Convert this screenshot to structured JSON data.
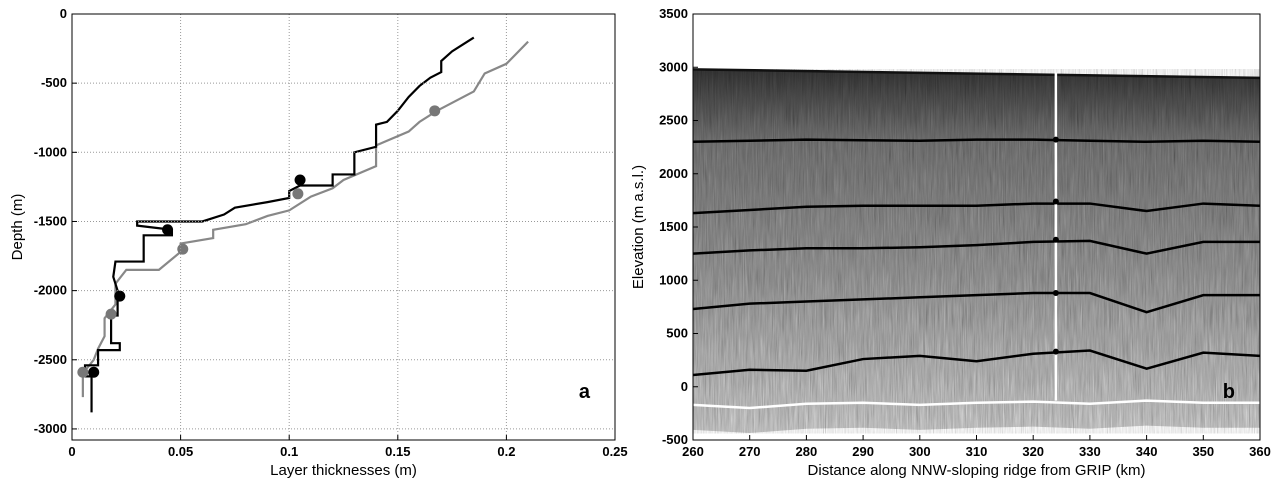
{
  "chart_data": [
    {
      "type": "line",
      "xlabel": "Layer thicknesses (m)",
      "ylabel": "Depth (m)",
      "xlim": [
        0,
        0.25
      ],
      "ylim": [
        -3080,
        0
      ],
      "xticks": [
        0,
        0.05,
        0.1,
        0.15,
        0.2,
        0.25
      ],
      "yticks": [
        0,
        -500,
        -1000,
        -1500,
        -2000,
        -2500,
        -3000
      ],
      "grid": true,
      "annotation": "a",
      "series": [
        {
          "color": "#888888",
          "style": "line",
          "x": [
            0.005,
            0.005,
            0.01,
            0.012,
            0.015,
            0.015,
            0.02,
            0.02,
            0.025,
            0.04,
            0.05,
            0.05,
            0.065,
            0.065,
            0.08,
            0.09,
            0.1,
            0.11,
            0.12,
            0.125,
            0.14,
            0.14,
            0.155,
            0.16,
            0.168,
            0.185,
            0.19,
            0.2,
            0.205,
            0.21
          ],
          "y": [
            -2770,
            -2600,
            -2500,
            -2420,
            -2330,
            -2200,
            -2100,
            -1950,
            -1850,
            -1850,
            -1720,
            -1660,
            -1620,
            -1560,
            -1520,
            -1460,
            -1420,
            -1320,
            -1260,
            -1200,
            -1100,
            -950,
            -850,
            -780,
            -700,
            -560,
            -430,
            -360,
            -280,
            -200
          ]
        },
        {
          "color": "#000000",
          "style": "line",
          "x": [
            0.009,
            0.009,
            0.006,
            0.006,
            0.012,
            0.012,
            0.022,
            0.022,
            0.018,
            0.018,
            0.021,
            0.021,
            0.019,
            0.02,
            0.033,
            0.033,
            0.046,
            0.046,
            0.03,
            0.03,
            0.06,
            0.07,
            0.075,
            0.09,
            0.1,
            0.1,
            0.105,
            0.12,
            0.12,
            0.13,
            0.13,
            0.14,
            0.14,
            0.145,
            0.15,
            0.155,
            0.16,
            0.165,
            0.17,
            0.17,
            0.175,
            0.18,
            0.185
          ],
          "y": [
            -2880,
            -2620,
            -2620,
            -2540,
            -2540,
            -2430,
            -2430,
            -2380,
            -2380,
            -2180,
            -2180,
            -2000,
            -1900,
            -1790,
            -1790,
            -1600,
            -1600,
            -1560,
            -1530,
            -1500,
            -1500,
            -1450,
            -1400,
            -1360,
            -1330,
            -1280,
            -1240,
            -1240,
            -1160,
            -1160,
            -1000,
            -960,
            -800,
            -780,
            -700,
            -600,
            -520,
            -460,
            -420,
            -340,
            -270,
            -220,
            -170
          ]
        },
        {
          "color": "#777777",
          "style": "dots",
          "x": [
            0.005,
            0.018,
            0.051,
            0.104,
            0.167
          ],
          "y": [
            -2590,
            -2170,
            -1700,
            -1300,
            -700
          ]
        },
        {
          "color": "#000000",
          "style": "dots",
          "x": [
            0.01,
            0.022,
            0.044,
            0.105
          ],
          "y": [
            -2590,
            -2040,
            -1560,
            -1200
          ]
        }
      ]
    },
    {
      "type": "radargram",
      "xlabel": "Distance along NNW-sloping ridge from GRIP (km)",
      "ylabel": "Elevation (m a.s.l.)",
      "xlim": [
        260,
        360
      ],
      "ylim": [
        -500,
        3500
      ],
      "xticks": [
        260,
        270,
        280,
        290,
        300,
        310,
        320,
        330,
        340,
        350,
        360
      ],
      "yticks": [
        -500,
        0,
        500,
        1000,
        1500,
        2000,
        2500,
        3000,
        3500
      ],
      "grid": false,
      "annotation": "b",
      "series": [
        {
          "color": "#111111",
          "style": "surface",
          "x": [
            260,
            360
          ],
          "y": [
            2980,
            2900
          ]
        },
        {
          "color": "#ffffff",
          "style": "line",
          "x": [
            260,
            270,
            280,
            290,
            300,
            310,
            320,
            330,
            340,
            350,
            360
          ],
          "y": [
            -170,
            -200,
            -160,
            -150,
            -170,
            -150,
            -140,
            -160,
            -130,
            -150,
            -150
          ]
        },
        {
          "color": "#000000",
          "style": "line",
          "x": [
            260,
            270,
            280,
            290,
            300,
            310,
            320,
            330,
            340,
            350,
            360
          ],
          "y": [
            2300,
            2310,
            2320,
            2315,
            2310,
            2320,
            2320,
            2310,
            2300,
            2310,
            2300
          ]
        },
        {
          "color": "#000000",
          "style": "line",
          "x": [
            260,
            270,
            280,
            290,
            300,
            310,
            320,
            330,
            340,
            350,
            360
          ],
          "y": [
            1630,
            1660,
            1690,
            1700,
            1700,
            1700,
            1720,
            1720,
            1650,
            1720,
            1700
          ]
        },
        {
          "color": "#000000",
          "style": "line",
          "x": [
            260,
            270,
            280,
            290,
            300,
            310,
            320,
            330,
            340,
            350,
            360
          ],
          "y": [
            1250,
            1280,
            1300,
            1300,
            1310,
            1330,
            1360,
            1370,
            1250,
            1360,
            1360
          ]
        },
        {
          "color": "#000000",
          "style": "line",
          "x": [
            260,
            270,
            280,
            290,
            300,
            310,
            320,
            330,
            340,
            350,
            360
          ],
          "y": [
            730,
            780,
            800,
            820,
            840,
            860,
            880,
            880,
            700,
            860,
            860
          ]
        },
        {
          "color": "#000000",
          "style": "line",
          "x": [
            260,
            270,
            280,
            290,
            300,
            310,
            320,
            330,
            340,
            350,
            360
          ],
          "y": [
            110,
            160,
            150,
            260,
            290,
            240,
            310,
            340,
            170,
            320,
            290
          ]
        },
        {
          "color": "#ffffff",
          "style": "line",
          "x": [
            324,
            324
          ],
          "y": [
            2950,
            -130
          ]
        },
        {
          "color": "#000000",
          "style": "dots",
          "x": [
            324,
            324,
            324,
            324,
            324
          ],
          "y": [
            2320,
            1740,
            1380,
            880,
            330
          ]
        }
      ]
    }
  ]
}
